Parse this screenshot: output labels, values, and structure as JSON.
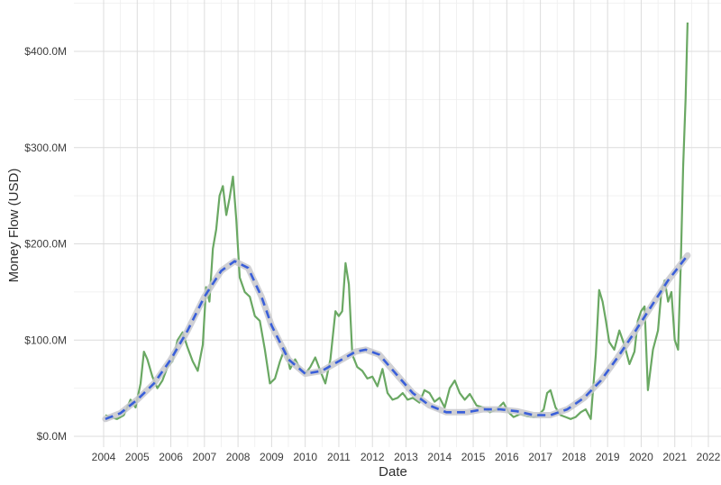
{
  "chart_data": {
    "type": "line",
    "title": "",
    "xlabel": "Date",
    "ylabel": "Money Flow (USD)",
    "x_ticks": [
      "2004",
      "2005",
      "2006",
      "2007",
      "2008",
      "2009",
      "2010",
      "2011",
      "2012",
      "2013",
      "2014",
      "2015",
      "2016",
      "2017",
      "2018",
      "2019",
      "2020",
      "2021",
      "2022"
    ],
    "y_ticks": [
      "$0.0M",
      "$100.0M",
      "$200.0M",
      "$300.0M",
      "$400.0M"
    ],
    "xlim": [
      2004.0,
      2022.0
    ],
    "ylim": [
      -8,
      440
    ],
    "grid": true,
    "colors": {
      "line": "#6aa863",
      "trend": "#3a5fd9",
      "band": "#c8c8cc"
    },
    "series": [
      {
        "values": [
          {
            "x": 2004.05,
            "y": 22
          },
          {
            "x": 2004.2,
            "y": 20
          },
          {
            "x": 2004.4,
            "y": 18
          },
          {
            "x": 2004.6,
            "y": 22
          },
          {
            "x": 2004.8,
            "y": 38
          },
          {
            "x": 2004.95,
            "y": 30
          },
          {
            "x": 2005.1,
            "y": 55
          },
          {
            "x": 2005.2,
            "y": 88
          },
          {
            "x": 2005.3,
            "y": 80
          },
          {
            "x": 2005.45,
            "y": 62
          },
          {
            "x": 2005.6,
            "y": 50
          },
          {
            "x": 2005.75,
            "y": 58
          },
          {
            "x": 2005.9,
            "y": 72
          },
          {
            "x": 2006.05,
            "y": 78
          },
          {
            "x": 2006.2,
            "y": 100
          },
          {
            "x": 2006.35,
            "y": 108
          },
          {
            "x": 2006.5,
            "y": 92
          },
          {
            "x": 2006.65,
            "y": 78
          },
          {
            "x": 2006.8,
            "y": 68
          },
          {
            "x": 2006.95,
            "y": 95
          },
          {
            "x": 2007.05,
            "y": 155
          },
          {
            "x": 2007.15,
            "y": 140
          },
          {
            "x": 2007.25,
            "y": 195
          },
          {
            "x": 2007.35,
            "y": 215
          },
          {
            "x": 2007.45,
            "y": 250
          },
          {
            "x": 2007.55,
            "y": 260
          },
          {
            "x": 2007.65,
            "y": 230
          },
          {
            "x": 2007.75,
            "y": 248
          },
          {
            "x": 2007.85,
            "y": 270
          },
          {
            "x": 2007.95,
            "y": 225
          },
          {
            "x": 2008.05,
            "y": 165
          },
          {
            "x": 2008.2,
            "y": 150
          },
          {
            "x": 2008.35,
            "y": 145
          },
          {
            "x": 2008.5,
            "y": 125
          },
          {
            "x": 2008.65,
            "y": 120
          },
          {
            "x": 2008.8,
            "y": 90
          },
          {
            "x": 2008.95,
            "y": 55
          },
          {
            "x": 2009.1,
            "y": 60
          },
          {
            "x": 2009.25,
            "y": 78
          },
          {
            "x": 2009.4,
            "y": 92
          },
          {
            "x": 2009.55,
            "y": 70
          },
          {
            "x": 2009.7,
            "y": 80
          },
          {
            "x": 2009.85,
            "y": 70
          },
          {
            "x": 2010.0,
            "y": 65
          },
          {
            "x": 2010.15,
            "y": 72
          },
          {
            "x": 2010.3,
            "y": 82
          },
          {
            "x": 2010.45,
            "y": 68
          },
          {
            "x": 2010.6,
            "y": 55
          },
          {
            "x": 2010.75,
            "y": 80
          },
          {
            "x": 2010.9,
            "y": 130
          },
          {
            "x": 2011.0,
            "y": 125
          },
          {
            "x": 2011.1,
            "y": 130
          },
          {
            "x": 2011.2,
            "y": 180
          },
          {
            "x": 2011.3,
            "y": 158
          },
          {
            "x": 2011.4,
            "y": 85
          },
          {
            "x": 2011.55,
            "y": 72
          },
          {
            "x": 2011.7,
            "y": 68
          },
          {
            "x": 2011.85,
            "y": 60
          },
          {
            "x": 2012.0,
            "y": 62
          },
          {
            "x": 2012.15,
            "y": 52
          },
          {
            "x": 2012.3,
            "y": 70
          },
          {
            "x": 2012.45,
            "y": 45
          },
          {
            "x": 2012.6,
            "y": 38
          },
          {
            "x": 2012.75,
            "y": 40
          },
          {
            "x": 2012.9,
            "y": 45
          },
          {
            "x": 2013.05,
            "y": 38
          },
          {
            "x": 2013.2,
            "y": 40
          },
          {
            "x": 2013.4,
            "y": 35
          },
          {
            "x": 2013.55,
            "y": 48
          },
          {
            "x": 2013.7,
            "y": 45
          },
          {
            "x": 2013.85,
            "y": 36
          },
          {
            "x": 2014.0,
            "y": 40
          },
          {
            "x": 2014.15,
            "y": 30
          },
          {
            "x": 2014.3,
            "y": 50
          },
          {
            "x": 2014.45,
            "y": 58
          },
          {
            "x": 2014.6,
            "y": 45
          },
          {
            "x": 2014.75,
            "y": 38
          },
          {
            "x": 2014.9,
            "y": 44
          },
          {
            "x": 2015.1,
            "y": 32
          },
          {
            "x": 2015.3,
            "y": 30
          },
          {
            "x": 2015.5,
            "y": 25
          },
          {
            "x": 2015.7,
            "y": 28
          },
          {
            "x": 2015.9,
            "y": 35
          },
          {
            "x": 2016.05,
            "y": 25
          },
          {
            "x": 2016.2,
            "y": 20
          },
          {
            "x": 2016.4,
            "y": 23
          },
          {
            "x": 2016.6,
            "y": 21
          },
          {
            "x": 2016.8,
            "y": 20
          },
          {
            "x": 2016.95,
            "y": 22
          },
          {
            "x": 2017.1,
            "y": 28
          },
          {
            "x": 2017.2,
            "y": 45
          },
          {
            "x": 2017.3,
            "y": 48
          },
          {
            "x": 2017.45,
            "y": 30
          },
          {
            "x": 2017.6,
            "y": 22
          },
          {
            "x": 2017.75,
            "y": 20
          },
          {
            "x": 2017.9,
            "y": 18
          },
          {
            "x": 2018.05,
            "y": 20
          },
          {
            "x": 2018.2,
            "y": 25
          },
          {
            "x": 2018.35,
            "y": 28
          },
          {
            "x": 2018.5,
            "y": 18
          },
          {
            "x": 2018.65,
            "y": 85
          },
          {
            "x": 2018.75,
            "y": 152
          },
          {
            "x": 2018.85,
            "y": 140
          },
          {
            "x": 2018.95,
            "y": 120
          },
          {
            "x": 2019.05,
            "y": 98
          },
          {
            "x": 2019.2,
            "y": 90
          },
          {
            "x": 2019.35,
            "y": 110
          },
          {
            "x": 2019.5,
            "y": 95
          },
          {
            "x": 2019.65,
            "y": 75
          },
          {
            "x": 2019.8,
            "y": 88
          },
          {
            "x": 2019.9,
            "y": 120
          },
          {
            "x": 2020.0,
            "y": 130
          },
          {
            "x": 2020.1,
            "y": 135
          },
          {
            "x": 2020.2,
            "y": 48
          },
          {
            "x": 2020.35,
            "y": 90
          },
          {
            "x": 2020.5,
            "y": 110
          },
          {
            "x": 2020.6,
            "y": 150
          },
          {
            "x": 2020.7,
            "y": 162
          },
          {
            "x": 2020.8,
            "y": 140
          },
          {
            "x": 2020.9,
            "y": 150
          },
          {
            "x": 2021.0,
            "y": 100
          },
          {
            "x": 2021.1,
            "y": 90
          },
          {
            "x": 2021.18,
            "y": 180
          },
          {
            "x": 2021.25,
            "y": 280
          },
          {
            "x": 2021.32,
            "y": 350
          },
          {
            "x": 2021.38,
            "y": 430
          }
        ]
      },
      {
        "type": "smooth-trend",
        "values": [
          {
            "x": 2004.05,
            "y": 18
          },
          {
            "x": 2004.5,
            "y": 24
          },
          {
            "x": 2005.0,
            "y": 38
          },
          {
            "x": 2005.5,
            "y": 55
          },
          {
            "x": 2006.0,
            "y": 80
          },
          {
            "x": 2006.5,
            "y": 110
          },
          {
            "x": 2007.0,
            "y": 145
          },
          {
            "x": 2007.5,
            "y": 172
          },
          {
            "x": 2007.9,
            "y": 182
          },
          {
            "x": 2008.3,
            "y": 175
          },
          {
            "x": 2008.7,
            "y": 145
          },
          {
            "x": 2009.0,
            "y": 115
          },
          {
            "x": 2009.5,
            "y": 80
          },
          {
            "x": 2010.0,
            "y": 65
          },
          {
            "x": 2010.5,
            "y": 68
          },
          {
            "x": 2011.0,
            "y": 78
          },
          {
            "x": 2011.5,
            "y": 88
          },
          {
            "x": 2011.8,
            "y": 90
          },
          {
            "x": 2012.2,
            "y": 85
          },
          {
            "x": 2012.7,
            "y": 65
          },
          {
            "x": 2013.2,
            "y": 45
          },
          {
            "x": 2013.7,
            "y": 32
          },
          {
            "x": 2014.2,
            "y": 25
          },
          {
            "x": 2014.8,
            "y": 25
          },
          {
            "x": 2015.3,
            "y": 28
          },
          {
            "x": 2015.8,
            "y": 28
          },
          {
            "x": 2016.3,
            "y": 26
          },
          {
            "x": 2016.8,
            "y": 22
          },
          {
            "x": 2017.3,
            "y": 22
          },
          {
            "x": 2017.8,
            "y": 28
          },
          {
            "x": 2018.3,
            "y": 40
          },
          {
            "x": 2018.8,
            "y": 58
          },
          {
            "x": 2019.3,
            "y": 82
          },
          {
            "x": 2019.8,
            "y": 108
          },
          {
            "x": 2020.3,
            "y": 135
          },
          {
            "x": 2020.8,
            "y": 162
          },
          {
            "x": 2021.38,
            "y": 188
          }
        ]
      }
    ]
  }
}
